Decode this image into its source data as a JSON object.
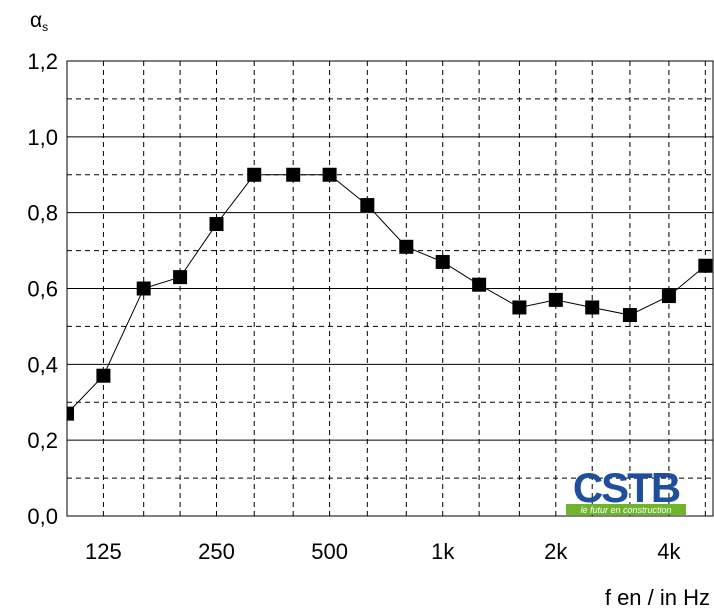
{
  "chart_data": {
    "type": "line",
    "ylabel_symbol": "α",
    "ylabel_subscript": "s",
    "xlabel": "f en / in Hz",
    "ylim": [
      0,
      1.2
    ],
    "yticks": [
      "0,0",
      "0,2",
      "0,4",
      "0,6",
      "0,8",
      "1,0",
      "1,2"
    ],
    "ytick_values": [
      0,
      0.2,
      0.4,
      0.6,
      0.8,
      1.0,
      1.2
    ],
    "x_scale": "log (third-octave bands)",
    "x_labeled_ticks": [
      {
        "label": "125",
        "value": 125
      },
      {
        "label": "250",
        "value": 250
      },
      {
        "label": "500",
        "value": 500
      },
      {
        "label": "1k",
        "value": 1000
      },
      {
        "label": "2k",
        "value": 2000
      },
      {
        "label": "4k",
        "value": 4000
      }
    ],
    "grid": true,
    "series": [
      {
        "x": [
          100,
          125,
          160,
          200,
          250,
          315,
          400,
          500,
          630,
          800,
          1000,
          1250,
          1600,
          2000,
          2500,
          3150,
          4000,
          5000
        ],
        "values": [
          0.27,
          0.37,
          0.6,
          0.63,
          0.77,
          0.9,
          0.9,
          0.9,
          0.82,
          0.71,
          0.67,
          0.61,
          0.55,
          0.57,
          0.55,
          0.53,
          0.58,
          0.66
        ]
      }
    ]
  },
  "logo": {
    "name": "CSTB",
    "tagline": "le futur en construction",
    "colors": {
      "main": "#1f4e9c",
      "tagline_bg": "#6fb52c",
      "tagline_text": "#ffffff"
    }
  }
}
